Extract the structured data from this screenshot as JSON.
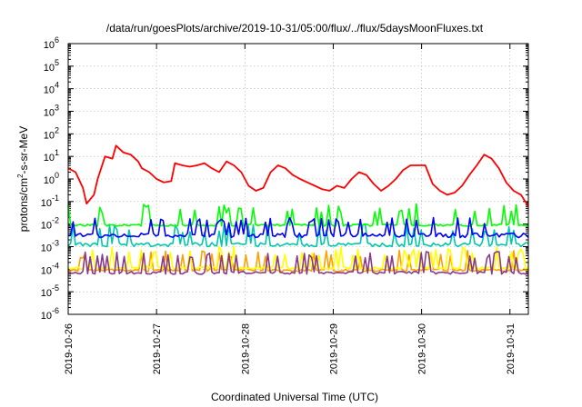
{
  "chart_data": {
    "type": "line",
    "title": "/data/run/goesPlots/archive/2019-10-31/05:00/flux/../flux/5daysMoonFluxes.txt",
    "xlabel": "Coordinated Universal Time (UTC)",
    "ylabel_parts": [
      "protons/cm",
      "2",
      "-s-sr-MeV"
    ],
    "x_range": [
      "2019-10-26T00:00",
      "2019-10-31T05:00"
    ],
    "x_ticks": [
      "2019-10-26",
      "2019-10-27",
      "2019-10-28",
      "2019-10-29",
      "2019-10-30",
      "2019-10-31"
    ],
    "y_scale": "log",
    "y_range": [
      1e-06,
      1000000.0
    ],
    "y_ticks": [
      {
        "base": "10",
        "exp": "-6"
      },
      {
        "base": "10",
        "exp": "-5"
      },
      {
        "base": "10",
        "exp": "-4"
      },
      {
        "base": "10",
        "exp": "-3"
      },
      {
        "base": "10",
        "exp": "-2"
      },
      {
        "base": "10",
        "exp": "-1"
      },
      {
        "base": "10",
        "exp": "0"
      },
      {
        "base": "10",
        "exp": "1"
      },
      {
        "base": "10",
        "exp": "2"
      },
      {
        "base": "10",
        "exp": "3"
      },
      {
        "base": "10",
        "exp": "4"
      },
      {
        "base": "10",
        "exp": "5"
      },
      {
        "base": "10",
        "exp": "6"
      }
    ],
    "grid": true,
    "series": [
      {
        "color": "#ff0000",
        "x": [
          "2019-10-26T00:00",
          "2019-10-26T02:00",
          "2019-10-26T04:00",
          "2019-10-26T05:00",
          "2019-10-26T07:00",
          "2019-10-26T08:00",
          "2019-10-26T10:00",
          "2019-10-26T12:00",
          "2019-10-26T13:00",
          "2019-10-26T15:00",
          "2019-10-26T17:00",
          "2019-10-26T19:00",
          "2019-10-26T20:00",
          "2019-10-26T22:00",
          "2019-10-27T00:00",
          "2019-10-27T02:00",
          "2019-10-27T04:00",
          "2019-10-27T05:00",
          "2019-10-27T07:00",
          "2019-10-27T09:00",
          "2019-10-27T11:00",
          "2019-10-27T13:00",
          "2019-10-27T15:00",
          "2019-10-27T17:00",
          "2019-10-27T19:00",
          "2019-10-27T21:00",
          "2019-10-27T23:00",
          "2019-10-28T01:00",
          "2019-10-28T03:00",
          "2019-10-28T05:00",
          "2019-10-28T07:00",
          "2019-10-28T09:00",
          "2019-10-28T11:00",
          "2019-10-28T13:00",
          "2019-10-28T15:00",
          "2019-10-28T17:00",
          "2019-10-28T19:00",
          "2019-10-28T21:00",
          "2019-10-28T23:00",
          "2019-10-29T01:00",
          "2019-10-29T03:00",
          "2019-10-29T05:00",
          "2019-10-29T07:00",
          "2019-10-29T09:00",
          "2019-10-29T11:00",
          "2019-10-29T13:00",
          "2019-10-29T15:00",
          "2019-10-29T17:00",
          "2019-10-29T19:00",
          "2019-10-29T21:00",
          "2019-10-29T23:00",
          "2019-10-30T01:00",
          "2019-10-30T03:00",
          "2019-10-30T05:00",
          "2019-10-30T07:00",
          "2019-10-30T09:00",
          "2019-10-30T11:00",
          "2019-10-30T13:00",
          "2019-10-30T15:00",
          "2019-10-30T17:00",
          "2019-10-30T19:00",
          "2019-10-30T21:00",
          "2019-10-30T23:00",
          "2019-10-31T01:00",
          "2019-10-31T03:00",
          "2019-10-31T05:00"
        ],
        "values": [
          3,
          2,
          0.4,
          0.08,
          0.2,
          1,
          10,
          8,
          30,
          15,
          12,
          6,
          3,
          2,
          1,
          0.7,
          0.8,
          5,
          4,
          3.5,
          4,
          5,
          3,
          2,
          6,
          4,
          2,
          0.5,
          0.3,
          0.4,
          2,
          4,
          3,
          1.5,
          1,
          0.7,
          0.5,
          0.35,
          0.3,
          0.5,
          0.4,
          1,
          2,
          1.5,
          0.6,
          0.3,
          0.5,
          1,
          2.5,
          4,
          4,
          4,
          0.6,
          0.3,
          0.2,
          0.25,
          0.5,
          1.5,
          4,
          12,
          8,
          3,
          0.7,
          0.3,
          0.2,
          0.06
        ]
      },
      {
        "color": "#00ff00",
        "baseline": [
          0.008,
          0.01
        ],
        "spikes": [
          0.03,
          0.08
        ]
      },
      {
        "color": "#0000ff",
        "baseline": [
          0.0025,
          0.004
        ],
        "spikes": [
          0.01,
          0.02
        ]
      },
      {
        "color": "#00c8a8",
        "baseline": [
          0.001,
          0.0015
        ],
        "spikes": [
          0.004,
          0.01
        ]
      },
      {
        "color": "#ffff00",
        "baseline": [
          0.0001,
          0.00013
        ],
        "spikes": [
          0.0004,
          0.001
        ]
      },
      {
        "color": "#ffa000",
        "baseline": [
          8e-05,
          0.0001
        ],
        "spikes": [
          0.0003,
          0.0007
        ]
      },
      {
        "color": "#8b3a8b",
        "baseline": [
          6e-05,
          8e-05
        ],
        "spikes": [
          0.0003,
          0.0006
        ]
      }
    ]
  }
}
